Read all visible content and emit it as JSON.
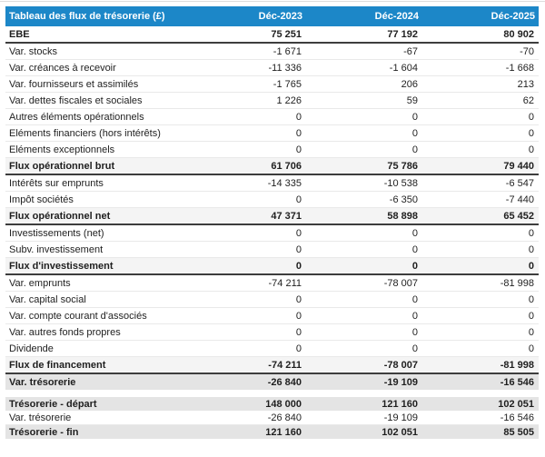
{
  "colors": {
    "header-bg": "#1c87c8",
    "header-text": "#ffffff",
    "subtotal-bg": "#f4f4f4",
    "highlight-bg": "#e4e4e4",
    "dark-border": "#3d3d3d",
    "light-border": "#e9e9e9"
  },
  "chart_data": {
    "type": "table",
    "title": "Tableau des flux de trésorerie (£)",
    "columns": [
      "Déc-2023",
      "Déc-2024",
      "Déc-2025"
    ],
    "rows": [
      {
        "label": "EBE",
        "values": [
          "75 251",
          "77 192",
          "80 902"
        ],
        "emphasis": "bold"
      },
      {
        "label": "Var. stocks",
        "values": [
          "-1 671",
          "-67",
          "-70"
        ],
        "emphasis": "normal"
      },
      {
        "label": "Var. créances à recevoir",
        "values": [
          "-11 336",
          "-1 604",
          "-1 668"
        ],
        "emphasis": "normal"
      },
      {
        "label": "Var. fournisseurs et assimilés",
        "values": [
          "-1 765",
          "206",
          "213"
        ],
        "emphasis": "normal"
      },
      {
        "label": "Var. dettes fiscales et sociales",
        "values": [
          "1 226",
          "59",
          "62"
        ],
        "emphasis": "normal"
      },
      {
        "label": "Autres éléments opérationnels",
        "values": [
          "0",
          "0",
          "0"
        ],
        "emphasis": "normal"
      },
      {
        "label": "Eléments financiers (hors intérêts)",
        "values": [
          "0",
          "0",
          "0"
        ],
        "emphasis": "normal"
      },
      {
        "label": "Eléments exceptionnels",
        "values": [
          "0",
          "0",
          "0"
        ],
        "emphasis": "normal"
      },
      {
        "label": "Flux opérationnel brut",
        "values": [
          "61 706",
          "75 786",
          "79 440"
        ],
        "emphasis": "subtotal"
      },
      {
        "label": "Intérêts sur emprunts",
        "values": [
          "-14 335",
          "-10 538",
          "-6 547"
        ],
        "emphasis": "normal"
      },
      {
        "label": "Impôt sociétés",
        "values": [
          "0",
          "-6 350",
          "-7 440"
        ],
        "emphasis": "normal"
      },
      {
        "label": "Flux opérationnel net",
        "values": [
          "47 371",
          "58 898",
          "65 452"
        ],
        "emphasis": "subtotal"
      },
      {
        "label": "Investissements (net)",
        "values": [
          "0",
          "0",
          "0"
        ],
        "emphasis": "normal"
      },
      {
        "label": "Subv. investissement",
        "values": [
          "0",
          "0",
          "0"
        ],
        "emphasis": "normal"
      },
      {
        "label": "Flux d'investissement",
        "values": [
          "0",
          "0",
          "0"
        ],
        "emphasis": "subtotal"
      },
      {
        "label": "Var. emprunts",
        "values": [
          "-74 211",
          "-78 007",
          "-81 998"
        ],
        "emphasis": "normal"
      },
      {
        "label": "Var. capital social",
        "values": [
          "0",
          "0",
          "0"
        ],
        "emphasis": "normal"
      },
      {
        "label": "Var. compte courant d'associés",
        "values": [
          "0",
          "0",
          "0"
        ],
        "emphasis": "normal"
      },
      {
        "label": "Var. autres fonds propres",
        "values": [
          "0",
          "0",
          "0"
        ],
        "emphasis": "normal"
      },
      {
        "label": "Dividende",
        "values": [
          "0",
          "0",
          "0"
        ],
        "emphasis": "normal"
      },
      {
        "label": "Flux de financement",
        "values": [
          "-74 211",
          "-78 007",
          "-81 998"
        ],
        "emphasis": "subtotal"
      },
      {
        "label": "Var. trésorerie",
        "values": [
          "-26 840",
          "-19 109",
          "-16 546"
        ],
        "emphasis": "highlight"
      },
      {
        "label": "Trésorerie - départ",
        "values": [
          "148 000",
          "121 160",
          "102 051"
        ],
        "emphasis": "highlight"
      },
      {
        "label": "Var. trésorerie",
        "values": [
          "-26 840",
          "-19 109",
          "-16 546"
        ],
        "emphasis": "normal"
      },
      {
        "label": "Trésorerie - fin",
        "values": [
          "121 160",
          "102 051",
          "85 505"
        ],
        "emphasis": "highlight"
      }
    ]
  }
}
